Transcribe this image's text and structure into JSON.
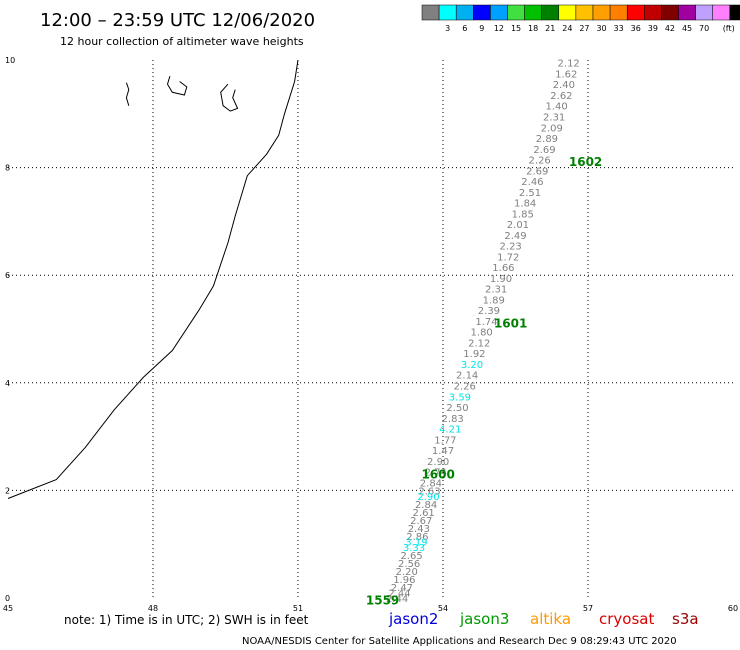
{
  "header": {
    "title": "12:00 – 23:59 UTC 12/06/2020",
    "subtitle": "12 hour collection of altimeter wave heights"
  },
  "color_scale": {
    "colors": [
      "#808080",
      "#00ffff",
      "#00b0f0",
      "#0000ff",
      "#00a0ff",
      "#40e040",
      "#00c000",
      "#008000",
      "#ffff00",
      "#ffc000",
      "#ffa000",
      "#ff8000",
      "#ff0000",
      "#c00000",
      "#800000",
      "#a000a0",
      "#c0a0ff",
      "#ff80ff",
      "#000000"
    ],
    "labels": [
      "3",
      "6",
      "9",
      "12",
      "15",
      "18",
      "21",
      "24",
      "27",
      "30",
      "33",
      "36",
      "39",
      "42",
      "45",
      "70"
    ],
    "unit": "(ft)"
  },
  "axes": {
    "x_ticks": [
      "45",
      "48",
      "51",
      "54",
      "57",
      "60"
    ],
    "y_ticks": [
      "0",
      "2",
      "4",
      "6",
      "8",
      "10"
    ]
  },
  "chart_data": {
    "type": "scatter",
    "x_range": [
      45,
      60
    ],
    "y_range": [
      0,
      10
    ],
    "observations": [
      {
        "x": 56.6,
        "y": 9.95,
        "v": "2.12",
        "c": "#808080"
      },
      {
        "x": 56.55,
        "y": 9.75,
        "v": "1.62",
        "c": "#808080"
      },
      {
        "x": 56.5,
        "y": 9.55,
        "v": "2.40",
        "c": "#808080"
      },
      {
        "x": 56.45,
        "y": 9.35,
        "v": "2.62",
        "c": "#808080"
      },
      {
        "x": 56.35,
        "y": 9.15,
        "v": "1.40",
        "c": "#808080"
      },
      {
        "x": 56.3,
        "y": 8.95,
        "v": "2.31",
        "c": "#808080"
      },
      {
        "x": 56.25,
        "y": 8.75,
        "v": "2.09",
        "c": "#808080"
      },
      {
        "x": 56.15,
        "y": 8.55,
        "v": "2.89",
        "c": "#808080"
      },
      {
        "x": 56.1,
        "y": 8.35,
        "v": "2.69",
        "c": "#808080"
      },
      {
        "x": 56.0,
        "y": 8.15,
        "v": "2.26",
        "c": "#808080"
      },
      {
        "x": 55.95,
        "y": 7.95,
        "v": "2.69",
        "c": "#808080"
      },
      {
        "x": 55.85,
        "y": 7.75,
        "v": "2.46",
        "c": "#808080"
      },
      {
        "x": 55.8,
        "y": 7.55,
        "v": "2.51",
        "c": "#808080"
      },
      {
        "x": 55.7,
        "y": 7.35,
        "v": "1.84",
        "c": "#808080"
      },
      {
        "x": 55.65,
        "y": 7.15,
        "v": "1.85",
        "c": "#808080"
      },
      {
        "x": 55.55,
        "y": 6.95,
        "v": "2.01",
        "c": "#808080"
      },
      {
        "x": 55.5,
        "y": 6.75,
        "v": "2.49",
        "c": "#808080"
      },
      {
        "x": 55.4,
        "y": 6.55,
        "v": "2.23",
        "c": "#808080"
      },
      {
        "x": 55.35,
        "y": 6.35,
        "v": "1.72",
        "c": "#808080"
      },
      {
        "x": 55.25,
        "y": 6.15,
        "v": "1.66",
        "c": "#808080"
      },
      {
        "x": 55.2,
        "y": 5.95,
        "v": "1.90",
        "c": "#808080"
      },
      {
        "x": 55.1,
        "y": 5.75,
        "v": "2.31",
        "c": "#808080"
      },
      {
        "x": 55.05,
        "y": 5.55,
        "v": "1.89",
        "c": "#808080"
      },
      {
        "x": 54.95,
        "y": 5.35,
        "v": "2.39",
        "c": "#808080"
      },
      {
        "x": 54.9,
        "y": 5.15,
        "v": "1.74",
        "c": "#808080"
      },
      {
        "x": 54.8,
        "y": 4.95,
        "v": "1.80",
        "c": "#808080"
      },
      {
        "x": 54.75,
        "y": 4.75,
        "v": "2.12",
        "c": "#808080"
      },
      {
        "x": 54.65,
        "y": 4.55,
        "v": "1.92",
        "c": "#808080"
      },
      {
        "x": 54.6,
        "y": 4.35,
        "v": "3.20",
        "c": "#00e5e5"
      },
      {
        "x": 54.5,
        "y": 4.15,
        "v": "2.14",
        "c": "#808080"
      },
      {
        "x": 54.45,
        "y": 3.95,
        "v": "2.26",
        "c": "#808080"
      },
      {
        "x": 54.35,
        "y": 3.75,
        "v": "3.59",
        "c": "#00e5e5"
      },
      {
        "x": 54.3,
        "y": 3.55,
        "v": "2.50",
        "c": "#808080"
      },
      {
        "x": 54.2,
        "y": 3.35,
        "v": "2.83",
        "c": "#808080"
      },
      {
        "x": 54.15,
        "y": 3.15,
        "v": "4.21",
        "c": "#00e5e5"
      },
      {
        "x": 54.05,
        "y": 2.95,
        "v": "1.77",
        "c": "#808080"
      },
      {
        "x": 54.0,
        "y": 2.75,
        "v": "1.47",
        "c": "#808080"
      },
      {
        "x": 53.9,
        "y": 2.55,
        "v": "2.90",
        "c": "#808080"
      },
      {
        "x": 53.85,
        "y": 2.35,
        "v": "2.74",
        "c": "#808080"
      },
      {
        "x": 53.75,
        "y": 2.15,
        "v": "2.84",
        "c": "#808080"
      },
      {
        "x": 53.72,
        "y": 2.0,
        "v": "2.63",
        "c": "#808080"
      },
      {
        "x": 53.7,
        "y": 1.9,
        "v": "2.90",
        "c": "#00e5e5"
      },
      {
        "x": 53.65,
        "y": 1.75,
        "v": "2.84",
        "c": "#808080"
      },
      {
        "x": 53.6,
        "y": 1.6,
        "v": "2.61",
        "c": "#808080"
      },
      {
        "x": 53.55,
        "y": 1.45,
        "v": "2.67",
        "c": "#808080"
      },
      {
        "x": 53.5,
        "y": 1.3,
        "v": "2.43",
        "c": "#808080"
      },
      {
        "x": 53.47,
        "y": 1.15,
        "v": "2.86",
        "c": "#808080"
      },
      {
        "x": 53.45,
        "y": 1.05,
        "v": "3.19",
        "c": "#00e5e5"
      },
      {
        "x": 53.4,
        "y": 0.95,
        "v": "3.33",
        "c": "#00e5e5"
      },
      {
        "x": 53.35,
        "y": 0.8,
        "v": "2.65",
        "c": "#808080"
      },
      {
        "x": 53.3,
        "y": 0.65,
        "v": "2.56",
        "c": "#808080"
      },
      {
        "x": 53.25,
        "y": 0.5,
        "v": "2.20",
        "c": "#808080"
      },
      {
        "x": 53.2,
        "y": 0.35,
        "v": "1.96",
        "c": "#808080"
      },
      {
        "x": 53.15,
        "y": 0.2,
        "v": "2.47",
        "c": "#808080"
      },
      {
        "x": 53.1,
        "y": 0.1,
        "v": "2.44",
        "c": "#808080"
      },
      {
        "x": 53.05,
        "y": 0.0,
        "v": "2.44",
        "c": "#808080"
      }
    ],
    "time_labels": [
      {
        "x": 56.95,
        "y": 8.1,
        "text": "1602"
      },
      {
        "x": 55.4,
        "y": 5.1,
        "text": "1601"
      },
      {
        "x": 53.9,
        "y": 2.3,
        "text": "1600"
      },
      {
        "x": 52.75,
        "y": -0.05,
        "text": "1559"
      }
    ],
    "coastline": [
      [
        51,
        10
      ],
      [
        50.93,
        9.6
      ],
      [
        50.72,
        9.0
      ],
      [
        50.6,
        8.6
      ],
      [
        50.35,
        8.25
      ],
      [
        49.95,
        7.85
      ],
      [
        49.7,
        7.1
      ],
      [
        49.55,
        6.6
      ],
      [
        49.25,
        5.8
      ],
      [
        48.95,
        5.35
      ],
      [
        48.4,
        4.6
      ],
      [
        47.8,
        4.1
      ],
      [
        47.2,
        3.5
      ],
      [
        46.6,
        2.8
      ],
      [
        46.0,
        2.2
      ],
      [
        45.0,
        1.85
      ]
    ],
    "islands": [
      [
        [
          47.45,
          9.58
        ],
        [
          47.5,
          9.45
        ],
        [
          47.45,
          9.3
        ],
        [
          47.5,
          9.15
        ]
      ],
      [
        [
          48.35,
          9.7
        ],
        [
          48.3,
          9.55
        ],
        [
          48.4,
          9.4
        ],
        [
          48.65,
          9.35
        ],
        [
          48.7,
          9.5
        ],
        [
          48.55,
          9.6
        ]
      ],
      [
        [
          49.55,
          9.55
        ],
        [
          49.4,
          9.4
        ],
        [
          49.45,
          9.15
        ],
        [
          49.6,
          9.05
        ],
        [
          49.75,
          9.1
        ],
        [
          49.65,
          9.3
        ],
        [
          49.7,
          9.45
        ]
      ]
    ]
  },
  "footer": {
    "note": "note:  1) Time is in UTC;  2) SWH is in feet",
    "satellites": [
      {
        "name": "jason2",
        "color": "#0000dd"
      },
      {
        "name": "jason3",
        "color": "#009900"
      },
      {
        "name": "altika",
        "color": "#ff9900"
      },
      {
        "name": "cryosat",
        "color": "#dd0000"
      },
      {
        "name": "s3a",
        "color": "#990000"
      }
    ],
    "credit": "NOAA/NESDIS Center for Satellite Applications and Research    Dec  9 08:29:43 UTC 2020"
  }
}
